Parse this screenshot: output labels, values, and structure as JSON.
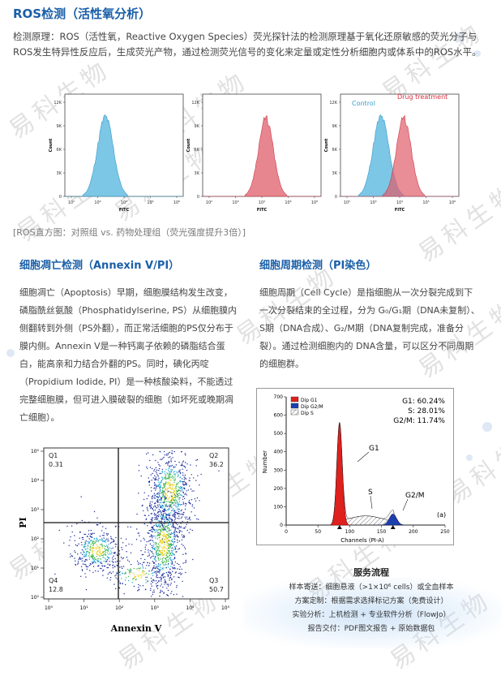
{
  "watermark": "易科生物",
  "ros": {
    "title": "ROS检测（活性氧分析）",
    "description": "检测原理：ROS（活性氧，Reactive Oxygen Species）荧光探针法的检测原理基于氧化还原敏感的荧光分子与ROS发生特异性反应后，生成荧光产物，通过检测荧光信号的变化来定量或定性分析细胞内或体系中的ROS水平。",
    "caption": "[ROS直方图：对照组 vs. 药物处理组（荧光强度提升3倍）]",
    "y_ticks": [
      "12K",
      "9K",
      "6K",
      "3K",
      "0"
    ],
    "x_ticks": [
      "10²",
      "10³",
      "10⁴",
      "10⁵",
      "10⁶"
    ],
    "ylabel": "Count",
    "xlabel": "FITC",
    "legend_control": "Control",
    "legend_drug": "Drug treatment",
    "colors": {
      "control": "#5bb8e0",
      "drug": "#e05d6a"
    }
  },
  "apoptosis": {
    "title": "细胞凋亡检测（Annexin V/PI）",
    "text": "细胞凋亡（Apoptosis）早期，细胞膜结构发生改变，磷脂酰丝氨酸（Phosphatidylserine, PS）从细胞膜内侧翻转到外侧（PS外翻），而正常活细胞的PS仅分布于膜内侧。Annexin V是一种钙离子依赖的磷脂结合蛋白，能高亲和力结合外翻的PS。同时，碘化丙啶（Propidium Iodide, PI）是一种核酸染料，不能透过完整细胞膜，但可进入膜破裂的细胞（如坏死或晚期凋亡细胞）。",
    "plot": {
      "q1_label": "Q1",
      "q1_value": "0.31",
      "q2_label": "Q2",
      "q2_value": "36.2",
      "q3_label": "Q3",
      "q3_value": "50.7",
      "q4_label": "Q4",
      "q4_value": "12.8",
      "xlabel": "Annexin V",
      "ylabel": "PI",
      "ticks": [
        "10⁰",
        "10¹",
        "10²",
        "10³",
        "10⁴",
        "10⁵"
      ]
    }
  },
  "cell_cycle": {
    "title": "细胞周期检测（PI染色）",
    "text": "细胞周期（Cell Cycle）是指细胞从一次分裂完成到下一次分裂结束的全过程，分为 G₀/G₁期（DNA未复制）、S期（DNA合成）、G₂/M期（DNA复制完成，准备分裂）。通过检测细胞内的 DNA含量，可以区分不同周期的细胞群。",
    "plot": {
      "legend": [
        "Dip G1",
        "Dip G2/M",
        "Dip S"
      ],
      "stats": [
        "G1: 60.24%",
        "S: 28.01%",
        "G2/M: 11.74%"
      ],
      "peak_labels": [
        "G1",
        "S",
        "G2/M"
      ],
      "panel_label": "(a)",
      "ylabel": "Number",
      "xlabel": "Channels (PI-A)",
      "y_ticks": [
        "0",
        "100",
        "200",
        "300",
        "400",
        "500",
        "600",
        "700"
      ],
      "x_ticks": [
        "0",
        "50",
        "100",
        "150",
        "200",
        "250"
      ],
      "colors": {
        "g1": "#e0201c",
        "g2m": "#1c3fb0",
        "s": "#ffffff"
      }
    }
  },
  "service": {
    "title": "服务流程",
    "steps": [
      "样本寄送：细胞悬液（>1×10⁶ cells）或全血样本",
      "方案定制：根据需求选择标记方案（免费设计）",
      "实验分析：上机检测 + 专业软件分析（FlowJo）",
      "报告交付：PDF图文报告 + 原始数据包"
    ]
  }
}
